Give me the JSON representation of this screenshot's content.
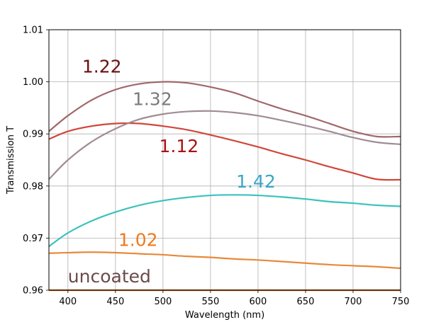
{
  "chart_data": {
    "type": "line",
    "title": "",
    "xlabel": "Wavelength (nm)",
    "ylabel": "Transmission T",
    "xlim": [
      380,
      750
    ],
    "ylim": [
      0.96,
      1.01
    ],
    "xticks": [
      "400",
      "450",
      "500",
      "550",
      "600",
      "650",
      "700",
      "750"
    ],
    "yticks": [
      "0.96",
      "0.97",
      "0.98",
      "0.99",
      "1.00",
      "1.01"
    ],
    "grid": true,
    "x": [
      380,
      400,
      425,
      450,
      475,
      500,
      525,
      550,
      575,
      600,
      625,
      650,
      675,
      700,
      725,
      750
    ],
    "series": [
      {
        "name": "uncoated",
        "color": "#c86414",
        "values": [
          0.96,
          0.96,
          0.96,
          0.96,
          0.96,
          0.96,
          0.96,
          0.96,
          0.96,
          0.96,
          0.96,
          0.96,
          0.96,
          0.96,
          0.96,
          0.96
        ]
      },
      {
        "name": "1.02",
        "color": "#e8893a",
        "values": [
          0.9671,
          0.9672,
          0.9673,
          0.9672,
          0.967,
          0.9668,
          0.9665,
          0.9663,
          0.966,
          0.9658,
          0.9655,
          0.9652,
          0.9649,
          0.9647,
          0.9645,
          0.9642
        ]
      },
      {
        "name": "1.12",
        "color": "#d0473b",
        "values": [
          0.989,
          0.9905,
          0.9915,
          0.992,
          0.992,
          0.9915,
          0.9908,
          0.9898,
          0.9887,
          0.9875,
          0.9862,
          0.985,
          0.9837,
          0.9825,
          0.9813,
          0.9812
        ]
      },
      {
        "name": "1.22",
        "color": "#a0686a",
        "values": [
          0.9905,
          0.9935,
          0.9965,
          0.9985,
          0.9996,
          1.0,
          0.9998,
          0.999,
          0.9979,
          0.9963,
          0.9948,
          0.9935,
          0.992,
          0.9905,
          0.9895,
          0.9895
        ]
      },
      {
        "name": "1.32",
        "color": "#a08c92",
        "values": [
          0.9813,
          0.985,
          0.9885,
          0.991,
          0.9928,
          0.9938,
          0.9943,
          0.9944,
          0.9941,
          0.9935,
          0.9926,
          0.9916,
          0.9905,
          0.9893,
          0.9884,
          0.988
        ]
      },
      {
        "name": "1.42",
        "color": "#3cc2bd",
        "values": [
          0.9684,
          0.971,
          0.9733,
          0.975,
          0.9763,
          0.9772,
          0.9778,
          0.9782,
          0.9783,
          0.9782,
          0.9779,
          0.9775,
          0.977,
          0.9767,
          0.9763,
          0.9761
        ]
      }
    ],
    "annotations": [
      {
        "text": "uncoated",
        "x": 400,
        "y": 0.9615,
        "color": "#6b4a4a"
      },
      {
        "text": "1.02",
        "x": 453,
        "y": 0.9685,
        "color": "#f07a1a"
      },
      {
        "text": "1.12",
        "x": 496,
        "y": 0.9865,
        "color": "#aa1111"
      },
      {
        "text": "1.22",
        "x": 415,
        "y": 1.0018,
        "color": "#6a1010"
      },
      {
        "text": "1.32",
        "x": 468,
        "y": 0.9955,
        "color": "#7a7a7a"
      },
      {
        "text": "1.42",
        "x": 577,
        "y": 0.9797,
        "color": "#3aa6c8"
      }
    ]
  }
}
